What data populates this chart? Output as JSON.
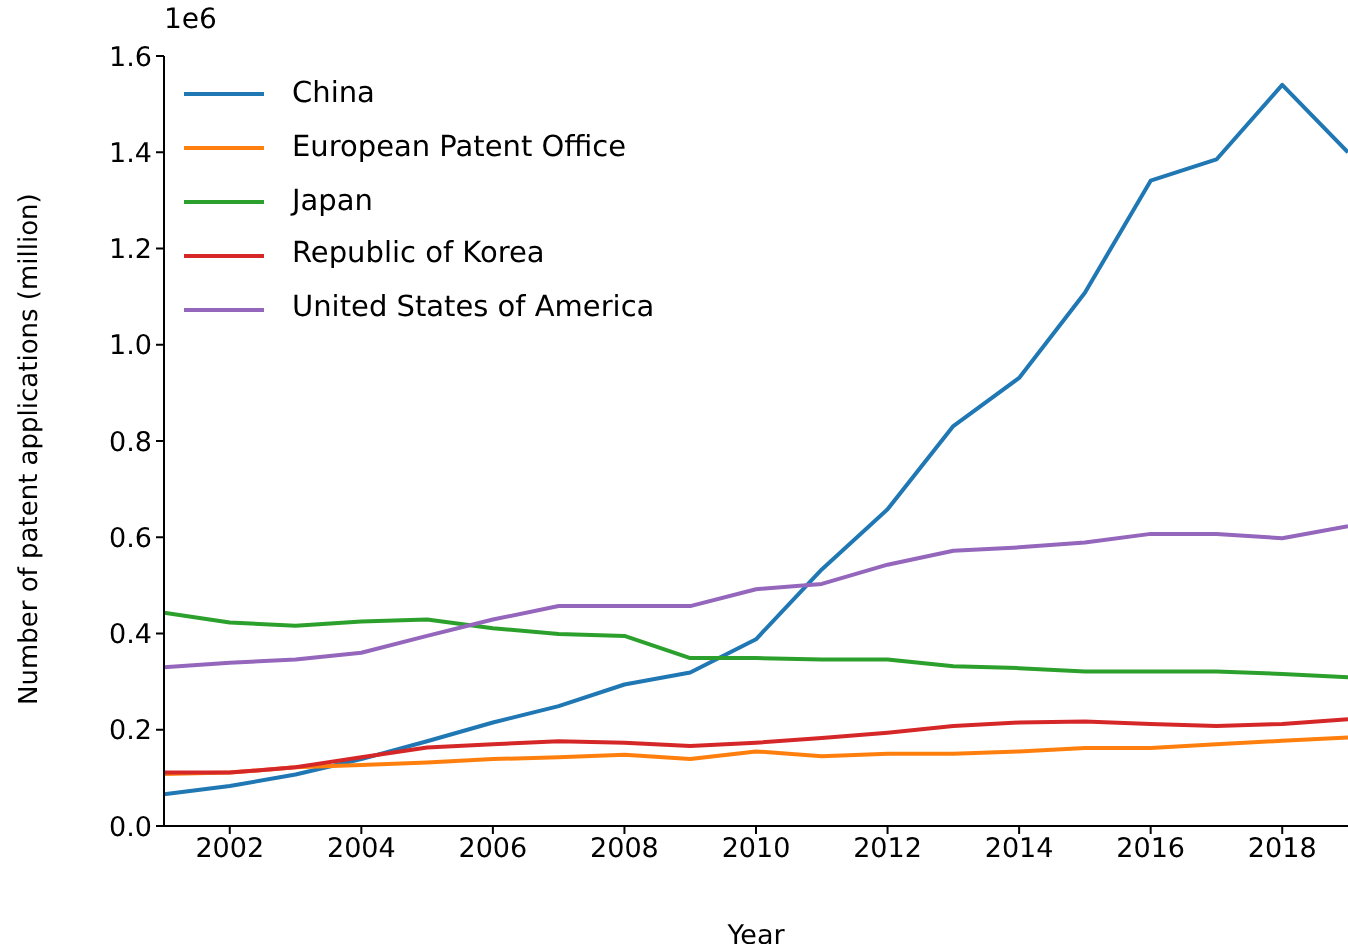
{
  "chart_data": {
    "type": "line",
    "xlabel": "Year",
    "ylabel": "Number of patent applications (million)",
    "annotations": [
      "1e6"
    ],
    "x": [
      2001,
      2002,
      2003,
      2004,
      2005,
      2006,
      2007,
      2008,
      2009,
      2010,
      2011,
      2012,
      2013,
      2014,
      2015,
      2016,
      2017,
      2018,
      2019
    ],
    "series": [
      {
        "name": "China",
        "color": "#1f77b4",
        "values": [
          0.066,
          0.083,
          0.107,
          0.139,
          0.176,
          0.215,
          0.249,
          0.294,
          0.319,
          0.388,
          0.533,
          0.658,
          0.831,
          0.931,
          1.108,
          1.341,
          1.385,
          1.54,
          1.4
        ]
      },
      {
        "name": "European Patent Office",
        "color": "#ff7f0e",
        "values": [
          0.108,
          0.111,
          0.122,
          0.127,
          0.132,
          0.139,
          0.143,
          0.148,
          0.139,
          0.155,
          0.145,
          0.15,
          0.15,
          0.155,
          0.162,
          0.162,
          0.17,
          0.177,
          0.184
        ]
      },
      {
        "name": "Japan",
        "color": "#2ca02c",
        "values": [
          0.443,
          0.423,
          0.416,
          0.425,
          0.429,
          0.411,
          0.399,
          0.395,
          0.349,
          0.349,
          0.346,
          0.346,
          0.332,
          0.328,
          0.321,
          0.321,
          0.321,
          0.316,
          0.309
        ]
      },
      {
        "name": "Republic of Korea",
        "color": "#d62728",
        "values": [
          0.111,
          0.111,
          0.122,
          0.143,
          0.163,
          0.17,
          0.176,
          0.173,
          0.166,
          0.173,
          0.183,
          0.194,
          0.208,
          0.215,
          0.217,
          0.212,
          0.208,
          0.212,
          0.222
        ]
      },
      {
        "name": "United States of America",
        "color": "#9467bd",
        "values": [
          0.33,
          0.339,
          0.346,
          0.36,
          0.395,
          0.429,
          0.457,
          0.457,
          0.457,
          0.492,
          0.503,
          0.543,
          0.572,
          0.579,
          0.589,
          0.607,
          0.607,
          0.598,
          0.623
        ]
      }
    ],
    "xlim": [
      2001,
      2019
    ],
    "xticks": [
      2002,
      2004,
      2006,
      2008,
      2010,
      2012,
      2014,
      2016,
      2018
    ],
    "ylim": [
      0,
      1.6
    ],
    "yticks": [
      {
        "value": 0,
        "label": "0.0"
      },
      0.2,
      0.4,
      0.6,
      0.8,
      {
        "value": 1,
        "label": "1.0"
      },
      1.2,
      1.4,
      1.6
    ],
    "grid": false,
    "legend": "top left",
    "marker": "none",
    "line_style": "solid"
  }
}
